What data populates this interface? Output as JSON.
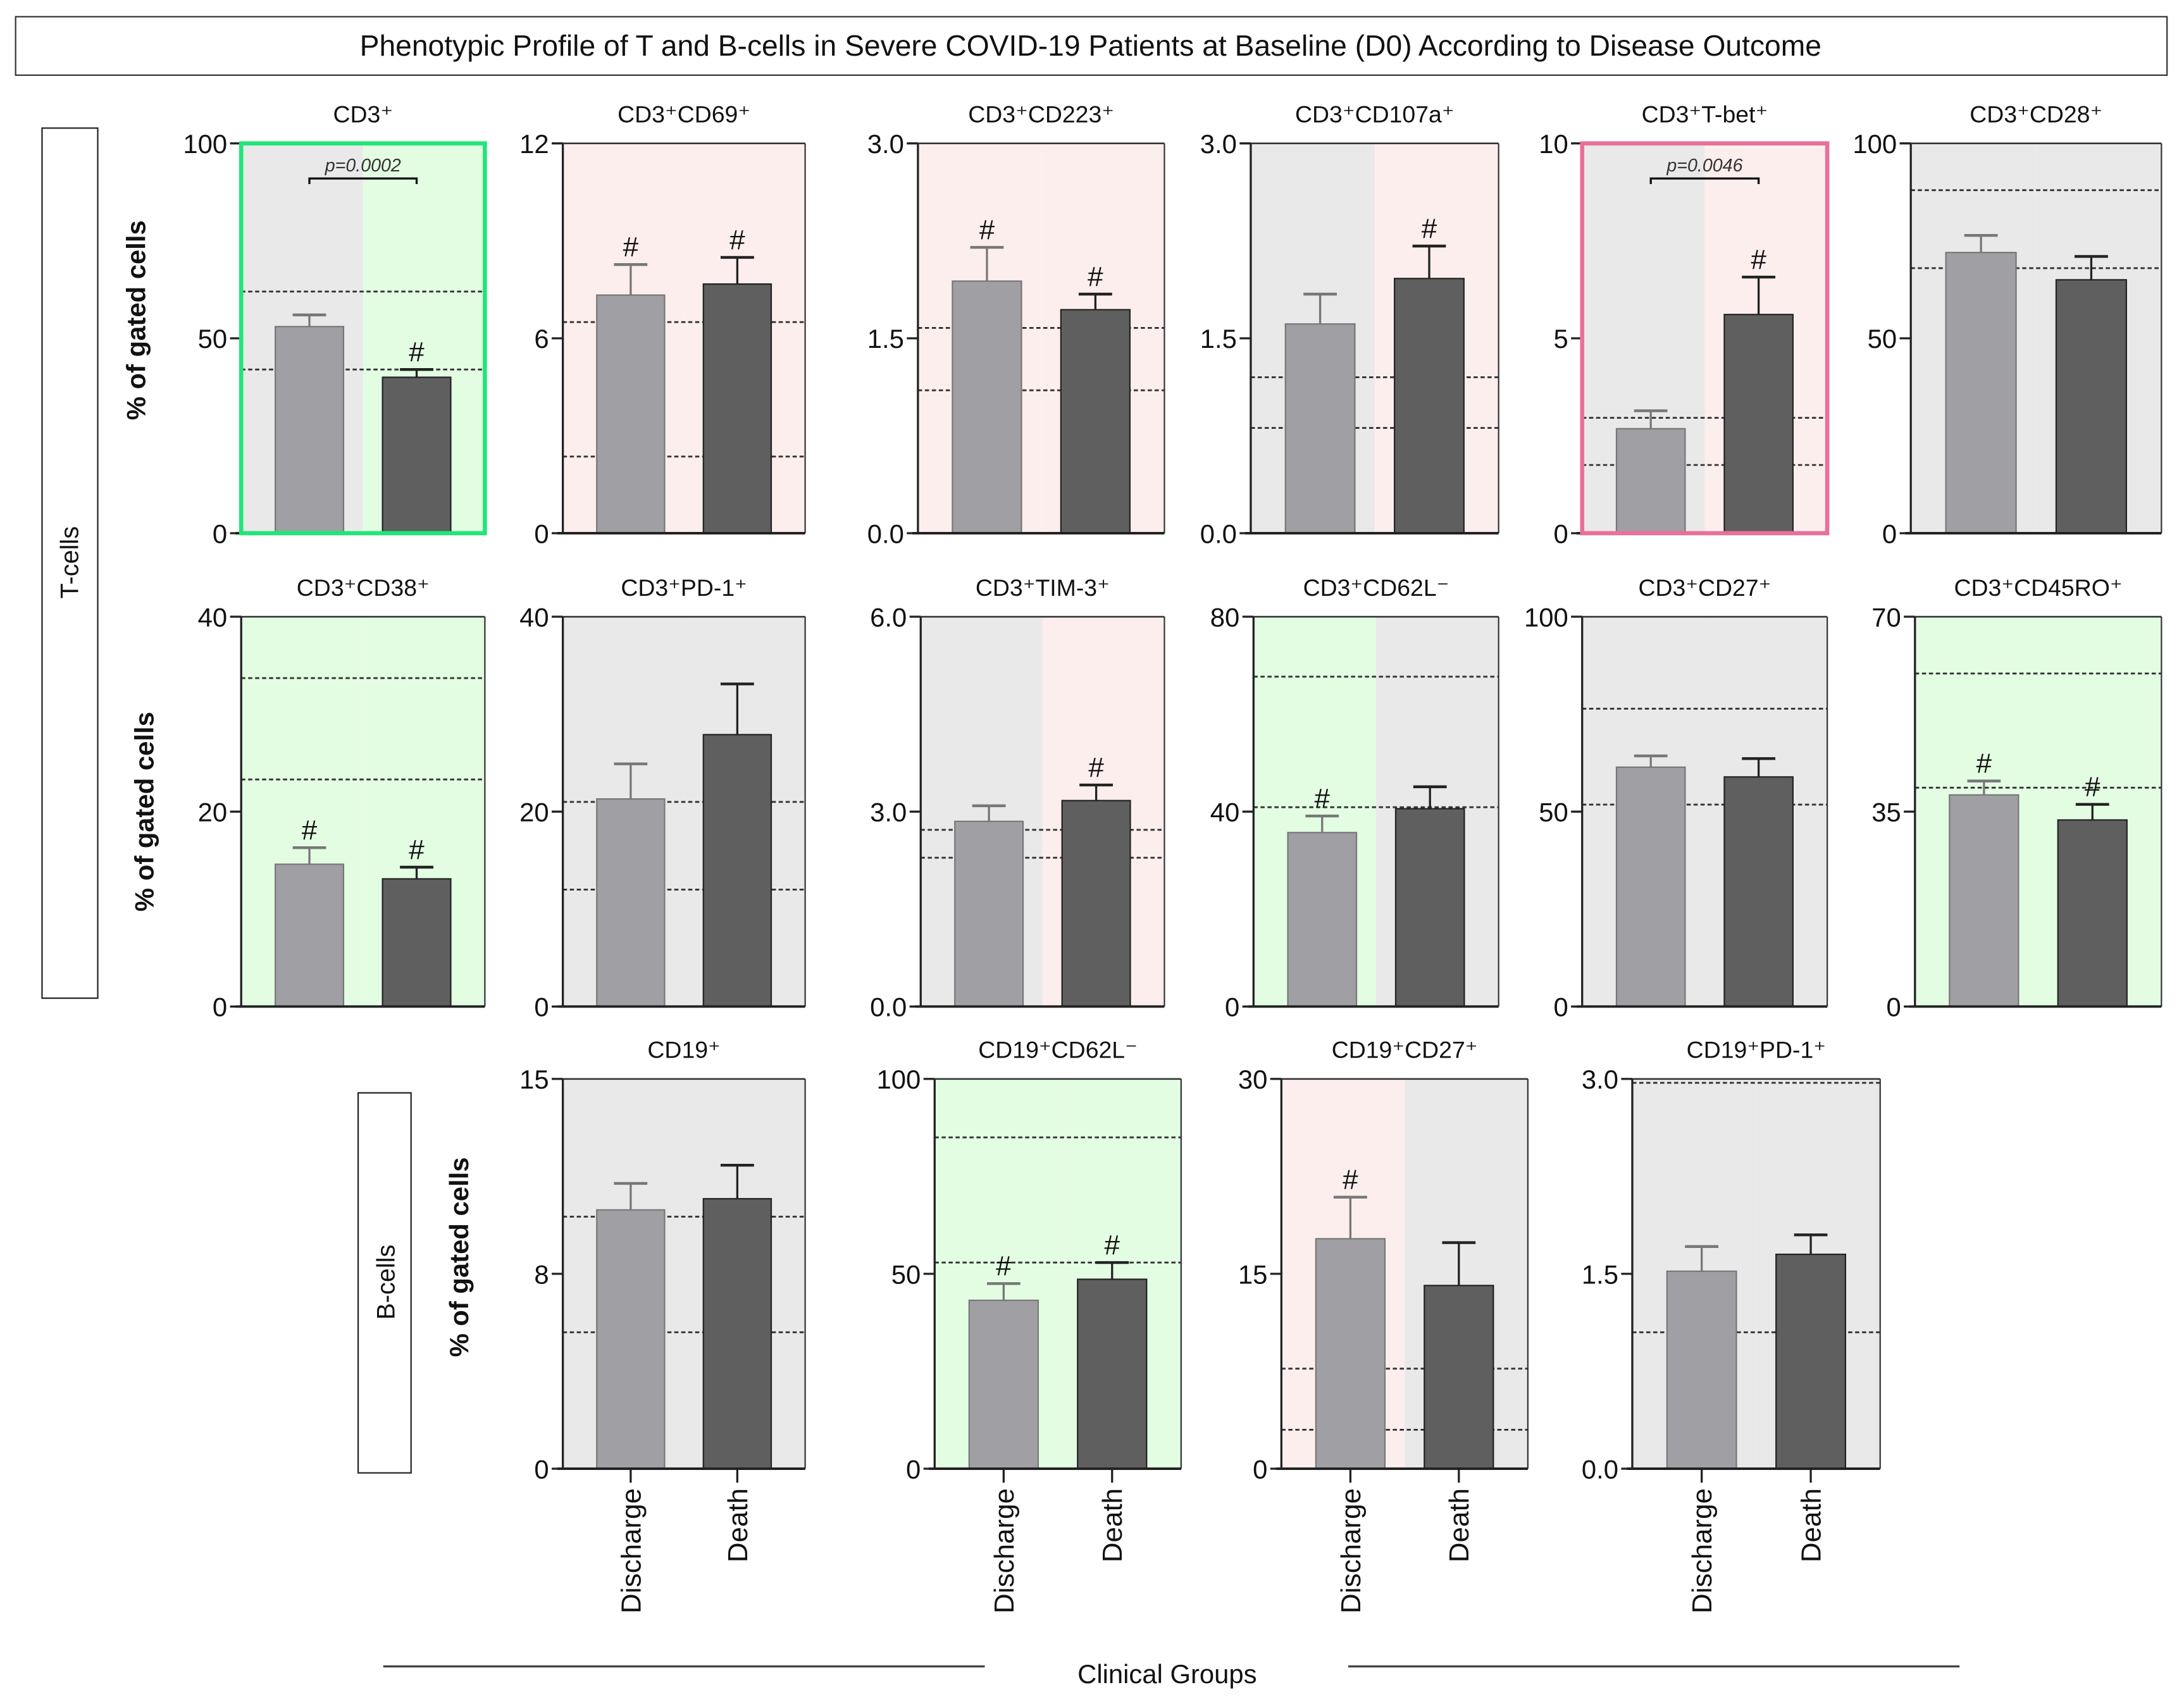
{
  "title": "Phenotypic Profile of T and B-cells in Severe COVID-19 Patients at Baseline (D0) According to Disease Outcome",
  "row_labels": {
    "t_cells": "T-cells",
    "b_cells": "B-cells"
  },
  "ylabel": "% of gated cells",
  "xlabel": "Clinical Groups",
  "colors": {
    "discharge": "#a0a0a4",
    "death": "#5f5f5f",
    "gray_bg": "#e9e9e9",
    "pink_bg": "#fdeeee",
    "green_bg": "#e3fde3",
    "green_border": "#22e57a",
    "pink_border": "#e8709a"
  },
  "chart_data": {
    "type": "bar",
    "categories": [
      "Discharge",
      "Death"
    ],
    "significance_marker": "#",
    "panels": [
      {
        "title": "CD3⁺",
        "ylim": [
          0,
          100
        ],
        "ticks": [
          0,
          50,
          100
        ],
        "tick_labels": [
          "0",
          "50",
          "100"
        ],
        "values": [
          53,
          40
        ],
        "errors": [
          56,
          42
        ],
        "reference_lines": [
          62,
          42
        ],
        "bg": [
          "gray",
          "green"
        ],
        "border": "green",
        "hash": [
          false,
          true
        ],
        "pvalue": "p=0.0002"
      },
      {
        "title": "CD3⁺CD69⁺",
        "ylim": [
          0,
          12
        ],
        "ticks": [
          0,
          6,
          12
        ],
        "tick_labels": [
          "0",
          "6",
          "12"
        ],
        "values": [
          7.33,
          7.67
        ],
        "errors": [
          8.27,
          8.49
        ],
        "reference_lines": [
          6.5,
          2.36
        ],
        "bg": [
          "pink",
          "pink"
        ],
        "hash": [
          true,
          true
        ]
      },
      {
        "title": "CD3⁺CD223⁺",
        "ylim": [
          0,
          3
        ],
        "ticks": [
          0,
          1.5,
          3
        ],
        "tick_labels": [
          "0.0",
          "1.5",
          "3.0"
        ],
        "values": [
          1.94,
          1.72
        ],
        "errors": [
          2.2,
          1.84
        ],
        "reference_lines": [
          1.58,
          1.1
        ],
        "bg": [
          "pink",
          "pink"
        ],
        "hash": [
          true,
          true
        ]
      },
      {
        "title": "CD3⁺CD107a⁺",
        "ylim": [
          0,
          3
        ],
        "ticks": [
          0,
          1.5,
          3
        ],
        "tick_labels": [
          "0.0",
          "1.5",
          "3.0"
        ],
        "values": [
          1.61,
          1.96
        ],
        "errors": [
          1.84,
          2.21
        ],
        "reference_lines": [
          1.2,
          0.81
        ],
        "bg": [
          "gray",
          "pink"
        ],
        "hash": [
          false,
          true
        ]
      },
      {
        "title": "CD3⁺T-bet⁺",
        "ylim": [
          0,
          10
        ],
        "ticks": [
          0,
          5,
          10
        ],
        "tick_labels": [
          "0",
          "5",
          "10"
        ],
        "values": [
          2.68,
          5.61
        ],
        "errors": [
          3.14,
          6.57
        ],
        "reference_lines": [
          2.96,
          1.75
        ],
        "bg": [
          "gray",
          "pink"
        ],
        "border": "pink",
        "hash": [
          false,
          true
        ],
        "pvalue": "p=0.0046"
      },
      {
        "title": "CD3⁺CD28⁺",
        "ylim": [
          0,
          100
        ],
        "ticks": [
          0,
          50,
          100
        ],
        "tick_labels": [
          "0",
          "50",
          "100"
        ],
        "values": [
          72,
          65
        ],
        "errors": [
          76.4,
          71
        ],
        "reference_lines": [
          88,
          68
        ],
        "bg": [
          "gray",
          "gray"
        ],
        "hash": [
          false,
          false
        ]
      },
      {
        "title": "CD3⁺CD38⁺",
        "ylim": [
          0,
          40
        ],
        "ticks": [
          0,
          20,
          40
        ],
        "tick_labels": [
          "0",
          "20",
          "40"
        ],
        "values": [
          14.6,
          13.1
        ],
        "errors": [
          16.3,
          14.3
        ],
        "reference_lines": [
          33.7,
          23.3
        ],
        "bg": [
          "green",
          "green"
        ],
        "hash": [
          true,
          true
        ]
      },
      {
        "title": "CD3⁺PD-1⁺",
        "ylim": [
          0,
          40
        ],
        "ticks": [
          0,
          20,
          40
        ],
        "tick_labels": [
          "0",
          "20",
          "40"
        ],
        "values": [
          21.3,
          27.9
        ],
        "errors": [
          24.9,
          33.1
        ],
        "reference_lines": [
          21,
          12
        ],
        "bg": [
          "gray",
          "gray"
        ],
        "hash": [
          false,
          false
        ]
      },
      {
        "title": "CD3⁺TIM-3⁺",
        "ylim": [
          0,
          6
        ],
        "ticks": [
          0,
          3,
          6
        ],
        "tick_labels": [
          "0.0",
          "3.0",
          "6.0"
        ],
        "values": [
          2.85,
          3.17
        ],
        "errors": [
          3.09,
          3.41
        ],
        "reference_lines": [
          2.72,
          2.29
        ],
        "bg": [
          "gray",
          "pink"
        ],
        "hash": [
          false,
          true
        ]
      },
      {
        "title": "CD3⁺CD62L⁻",
        "ylim": [
          0,
          80
        ],
        "ticks": [
          0,
          40,
          80
        ],
        "tick_labels": [
          "0",
          "40",
          "80"
        ],
        "values": [
          35.7,
          40.6
        ],
        "errors": [
          39.1,
          45.1
        ],
        "reference_lines": [
          67.7,
          40.9
        ],
        "bg": [
          "green",
          "gray"
        ],
        "hash": [
          true,
          false
        ]
      },
      {
        "title": "CD3⁺CD27⁺",
        "ylim": [
          0,
          100
        ],
        "ticks": [
          0,
          50,
          100
        ],
        "tick_labels": [
          "0",
          "50",
          "100"
        ],
        "values": [
          61.4,
          58.9
        ],
        "errors": [
          64.3,
          63.6
        ],
        "reference_lines": [
          76.4,
          51.8
        ],
        "bg": [
          "gray",
          "gray"
        ],
        "hash": [
          false,
          false
        ]
      },
      {
        "title": "CD3⁺CD45RO⁺",
        "ylim": [
          0,
          70
        ],
        "ticks": [
          0,
          35,
          70
        ],
        "tick_labels": [
          "0",
          "35",
          "70"
        ],
        "values": [
          38,
          33.5
        ],
        "errors": [
          40.5,
          36.3
        ],
        "reference_lines": [
          59.8,
          39.3
        ],
        "bg": [
          "green",
          "green"
        ],
        "hash": [
          true,
          true
        ]
      },
      {
        "title": "CD19⁺",
        "ylim": [
          0,
          15
        ],
        "ticks": [
          0,
          7.5,
          15
        ],
        "tick_labels": [
          "0",
          "8",
          "15"
        ],
        "values": [
          9.96,
          10.39
        ],
        "errors": [
          10.98,
          11.68
        ],
        "reference_lines": [
          9.7,
          5.25
        ],
        "bg": [
          "gray",
          "gray"
        ],
        "hash": [
          false,
          false
        ]
      },
      {
        "title": "CD19⁺CD62L⁻",
        "ylim": [
          0,
          100
        ],
        "ticks": [
          0,
          50,
          100
        ],
        "tick_labels": [
          "0",
          "50",
          "100"
        ],
        "values": [
          43.2,
          48.6
        ],
        "errors": [
          47.5,
          52.9
        ],
        "reference_lines": [
          85,
          52.9
        ],
        "bg": [
          "green",
          "green"
        ],
        "hash": [
          true,
          true
        ]
      },
      {
        "title": "CD19⁺CD27⁺",
        "ylim": [
          0,
          30
        ],
        "ticks": [
          0,
          15,
          30
        ],
        "tick_labels": [
          "0",
          "15",
          "30"
        ],
        "values": [
          17.7,
          14.1
        ],
        "errors": [
          20.9,
          17.4
        ],
        "reference_lines": [
          7.7,
          3
        ],
        "bg": [
          "pink",
          "gray"
        ],
        "hash": [
          true,
          false
        ]
      },
      {
        "title": "CD19⁺PD-1⁺",
        "ylim": [
          0,
          3
        ],
        "ticks": [
          0,
          1.5,
          3
        ],
        "tick_labels": [
          "0.0",
          "1.5",
          "3.0"
        ],
        "values": [
          1.52,
          1.65
        ],
        "errors": [
          1.71,
          1.8
        ],
        "reference_lines": [
          2.97,
          1.05
        ],
        "bg": [
          "gray",
          "gray"
        ],
        "hash": [
          false,
          false
        ]
      }
    ]
  }
}
